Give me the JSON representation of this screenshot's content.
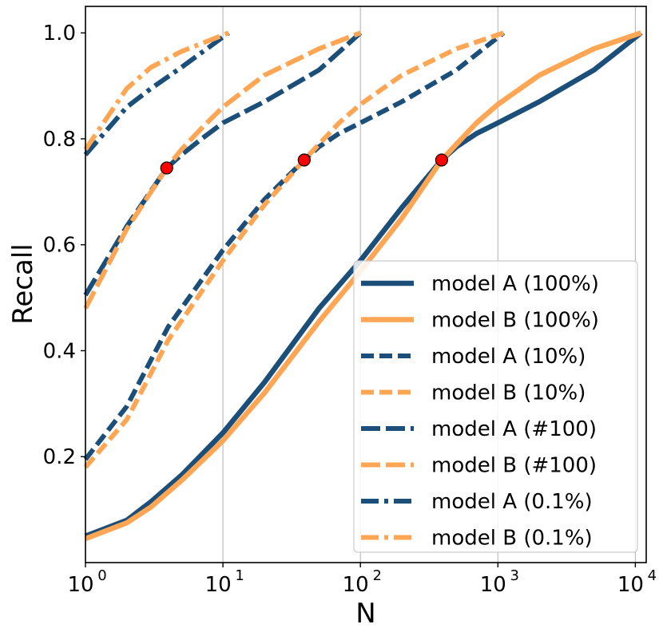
{
  "chart_data": {
    "type": "line",
    "title": "",
    "xlabel": "N",
    "ylabel": "Recall",
    "xscale": "log",
    "xlim": [
      1,
      12000
    ],
    "ylim": [
      0.0,
      1.05
    ],
    "x_ticks": [
      {
        "value": 1,
        "base": "10",
        "exp": "0"
      },
      {
        "value": 10,
        "base": "10",
        "exp": "1"
      },
      {
        "value": 100,
        "base": "10",
        "exp": "2"
      },
      {
        "value": 1000,
        "base": "10",
        "exp": "3"
      },
      {
        "value": 10000,
        "base": "10",
        "exp": "4"
      }
    ],
    "y_ticks": [
      {
        "value": 0.2,
        "label": "0.2"
      },
      {
        "value": 0.4,
        "label": "0.4"
      },
      {
        "value": 0.6,
        "label": "0.6"
      },
      {
        "value": 0.8,
        "label": "0.8"
      },
      {
        "value": 1.0,
        "label": "1.0"
      }
    ],
    "grid": "vertical at major x ticks",
    "legend_position": "lower-right",
    "colors": {
      "model_a": "#1b4f7a",
      "model_b": "#ffa654",
      "marker": "#ff0000"
    },
    "series": [
      {
        "name": "model A (100%)",
        "model": "a",
        "style": "solid",
        "x": [
          1,
          2,
          3,
          5,
          10,
          20,
          50,
          100,
          200,
          390,
          500,
          700,
          1000,
          2000,
          5000,
          11000
        ],
        "y": [
          0.05,
          0.08,
          0.115,
          0.165,
          0.245,
          0.34,
          0.48,
          0.57,
          0.67,
          0.76,
          0.785,
          0.81,
          0.83,
          0.87,
          0.93,
          1.0
        ]
      },
      {
        "name": "model B (100%)",
        "model": "b",
        "style": "solid",
        "x": [
          1,
          2,
          3,
          5,
          10,
          20,
          50,
          100,
          200,
          390,
          500,
          700,
          1000,
          2000,
          5000,
          11000
        ],
        "y": [
          0.045,
          0.075,
          0.105,
          0.155,
          0.23,
          0.32,
          0.455,
          0.55,
          0.65,
          0.76,
          0.79,
          0.83,
          0.865,
          0.92,
          0.97,
          1.0
        ]
      },
      {
        "name": "model A (10%)",
        "model": "a",
        "style": "dashed",
        "x": [
          1,
          2,
          4,
          10,
          20,
          39,
          50,
          70,
          100,
          200,
          500,
          1100
        ],
        "y": [
          0.195,
          0.295,
          0.445,
          0.59,
          0.685,
          0.76,
          0.785,
          0.81,
          0.83,
          0.87,
          0.93,
          1.0
        ]
      },
      {
        "name": "model B (10%)",
        "model": "b",
        "style": "dashed",
        "x": [
          1,
          2,
          4,
          10,
          20,
          39,
          50,
          70,
          100,
          200,
          500,
          1100
        ],
        "y": [
          0.18,
          0.27,
          0.42,
          0.57,
          0.675,
          0.76,
          0.79,
          0.83,
          0.865,
          0.92,
          0.97,
          1.0
        ]
      },
      {
        "name": "model A (#100)",
        "model": "a",
        "style": "longdash",
        "x": [
          1,
          2,
          3.9,
          5,
          7,
          10,
          20,
          50,
          100
        ],
        "y": [
          0.505,
          0.635,
          0.745,
          0.77,
          0.8,
          0.83,
          0.87,
          0.93,
          1.0
        ]
      },
      {
        "name": "model B (#100)",
        "model": "b",
        "style": "longdash",
        "x": [
          1,
          2,
          3.9,
          5,
          7,
          10,
          20,
          50,
          100
        ],
        "y": [
          0.48,
          0.63,
          0.745,
          0.78,
          0.82,
          0.86,
          0.92,
          0.97,
          1.0
        ]
      },
      {
        "name": "model A (0.1%)",
        "model": "a",
        "style": "dashdot",
        "x": [
          1,
          2,
          3,
          5,
          11
        ],
        "y": [
          0.77,
          0.86,
          0.895,
          0.935,
          1.0
        ]
      },
      {
        "name": "model B (0.1%)",
        "model": "b",
        "style": "dashdot",
        "x": [
          1,
          2,
          3,
          5,
          11
        ],
        "y": [
          0.78,
          0.895,
          0.935,
          0.965,
          1.0
        ]
      }
    ],
    "markers": [
      {
        "x": 3.9,
        "y": 0.745
      },
      {
        "x": 39,
        "y": 0.76
      },
      {
        "x": 390,
        "y": 0.76
      }
    ]
  }
}
